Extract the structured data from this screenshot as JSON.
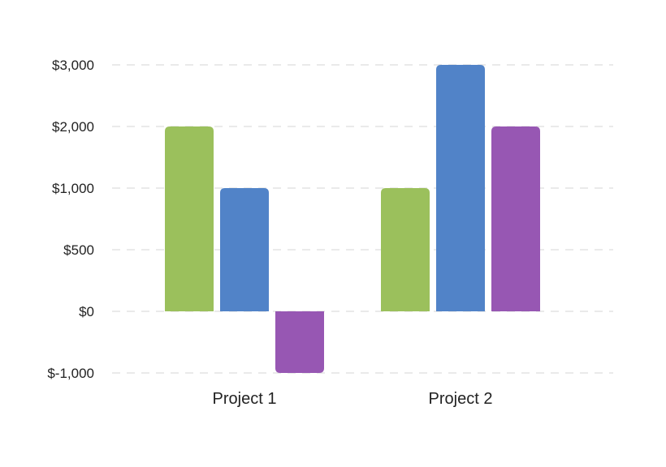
{
  "chart_data": {
    "type": "bar",
    "categories": [
      "Project 1",
      "Project 2"
    ],
    "series": [
      {
        "color": "#9bc05c",
        "values": [
          2000,
          1000
        ]
      },
      {
        "color": "#5183c8",
        "values": [
          1000,
          3000
        ]
      },
      {
        "color": "#9757b3",
        "values": [
          -1000,
          2000
        ]
      }
    ],
    "y_ticks": [
      {
        "value": -1000,
        "label": "$-1,000"
      },
      {
        "value": 0,
        "label": "$0"
      },
      {
        "value": 500,
        "label": "$500"
      },
      {
        "value": 1000,
        "label": "$1,000"
      },
      {
        "value": 2000,
        "label": "$2,000"
      },
      {
        "value": 3000,
        "label": "$3,000"
      }
    ],
    "y_scale": "piecewise (tick spacing is uniform; 0→500→1,000 equally spaced as 1,000→2,000)",
    "grid": true,
    "legend": "none",
    "title": "",
    "xlabel": "",
    "ylabel": ""
  }
}
